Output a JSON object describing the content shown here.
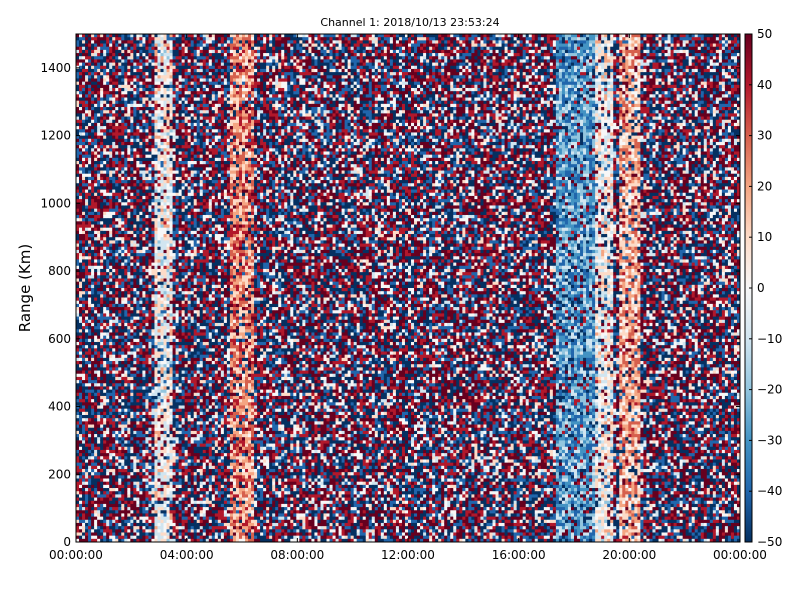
{
  "chart_data": {
    "type": "heatmap",
    "title": "Channel 1: 2018/10/13 23:53:24",
    "xlabel": "",
    "ylabel": "Range (Km)",
    "x_range": [
      "00:00:00",
      "24:00:00"
    ],
    "x_ticks": [
      "00:00:00",
      "04:00:00",
      "08:00:00",
      "12:00:00",
      "16:00:00",
      "20:00:00",
      "00:00:00"
    ],
    "y_range": [
      0,
      1500
    ],
    "y_ticks": [
      0,
      200,
      400,
      600,
      800,
      1000,
      1200,
      1400
    ],
    "colorbar": {
      "range": [
        -50,
        50
      ],
      "ticks": [
        -50,
        -40,
        -30,
        -20,
        -10,
        0,
        10,
        20,
        30,
        40,
        50
      ],
      "colormap": "RdBu_r",
      "colors": [
        "#053061",
        "#2166ac",
        "#4393c3",
        "#92c5de",
        "#d1e5f0",
        "#f7f7f7",
        "#fddbc7",
        "#f4a582",
        "#d6604d",
        "#b2182b",
        "#67001f"
      ]
    },
    "grid": false,
    "features": [
      {
        "kind": "band",
        "x_start": "02:48:00",
        "x_end": "03:30:00",
        "level": 0,
        "desc_value": "near zero"
      },
      {
        "kind": "band",
        "x_start": "05:36:00",
        "x_end": "06:24:00",
        "level": 20
      },
      {
        "kind": "band",
        "x_start": "17:24:00",
        "x_end": "18:48:00",
        "level": -25
      },
      {
        "kind": "band",
        "x_start": "18:48:00",
        "x_end": "19:24:00",
        "level": 0
      },
      {
        "kind": "band",
        "x_start": "19:36:00",
        "x_end": "20:24:00",
        "level": 15
      }
    ]
  }
}
